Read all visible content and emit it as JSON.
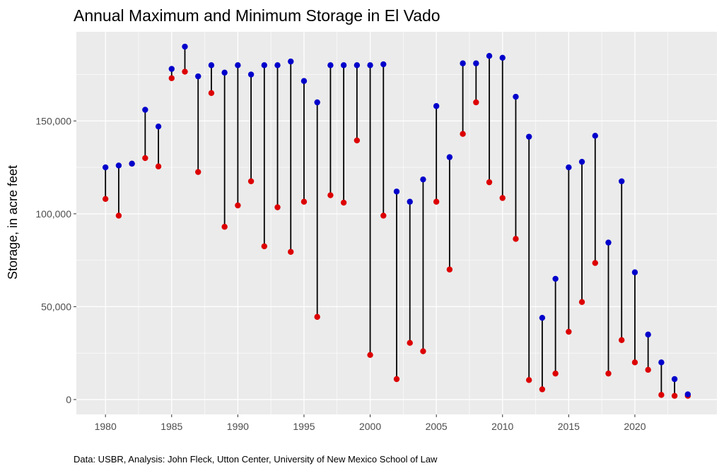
{
  "chart_data": {
    "type": "dumbbell",
    "title": "Annual Maximum and Minimum Storage in El Vado",
    "xlabel": "",
    "ylabel": "Storage, in acre feet",
    "caption": "Data: USBR, Analysis: John Fleck, Utton Center, University of New Mexico School of Law",
    "xlim": [
      1977.8,
      2026.2
    ],
    "ylim": [
      -8000,
      198000
    ],
    "x_ticks": [
      1980,
      1985,
      1990,
      1995,
      2000,
      2005,
      2010,
      2015,
      2020
    ],
    "x_tick_labels": [
      "1980",
      "1985",
      "1990",
      "1995",
      "2000",
      "2005",
      "2010",
      "2015",
      "2020"
    ],
    "y_ticks": [
      0,
      50000,
      100000,
      150000
    ],
    "y_tick_labels": [
      "0",
      "50,000",
      "100,000",
      "150,000"
    ],
    "grid": true,
    "colors": {
      "max": "#0000cc",
      "min": "#dd0000",
      "segment": "#000000",
      "panel": "#ebebeb",
      "grid": "#ffffff"
    },
    "series": [
      {
        "name": "max",
        "values": [
          125000,
          126000,
          127000,
          156000,
          147000,
          178000,
          190000,
          174000,
          180000,
          176000,
          180000,
          175000,
          180000,
          180000,
          182000,
          171500,
          160000,
          180000,
          180000,
          180000,
          180000,
          180500,
          112000,
          106500,
          118500,
          158000,
          130500,
          181000,
          181000,
          185000,
          184000,
          163000,
          141500,
          44000,
          65000,
          125000,
          128000,
          142000,
          84500,
          117500,
          68500,
          35000,
          20000,
          11000,
          2800
        ]
      },
      {
        "name": "min",
        "values": [
          108000,
          99000,
          127000,
          130000,
          125500,
          173000,
          176500,
          122500,
          165000,
          93000,
          104500,
          117500,
          82500,
          103500,
          79500,
          106500,
          44500,
          110000,
          106000,
          139500,
          24000,
          99000,
          11000,
          30500,
          26000,
          106500,
          70000,
          143000,
          160000,
          117000,
          108500,
          86500,
          10500,
          5500,
          14000,
          36500,
          52500,
          73500,
          14000,
          32000,
          20000,
          16000,
          2500,
          2000,
          2000
        ]
      }
    ],
    "years": [
      1980,
      1981,
      1982,
      1983,
      1984,
      1985,
      1986,
      1987,
      1988,
      1989,
      1990,
      1991,
      1992,
      1993,
      1994,
      1995,
      1996,
      1997,
      1998,
      1999,
      2000,
      2001,
      2002,
      2003,
      2004,
      2005,
      2006,
      2007,
      2008,
      2009,
      2010,
      2011,
      2012,
      2013,
      2014,
      2015,
      2016,
      2017,
      2018,
      2019,
      2020,
      2021,
      2022,
      2023,
      2024
    ]
  }
}
